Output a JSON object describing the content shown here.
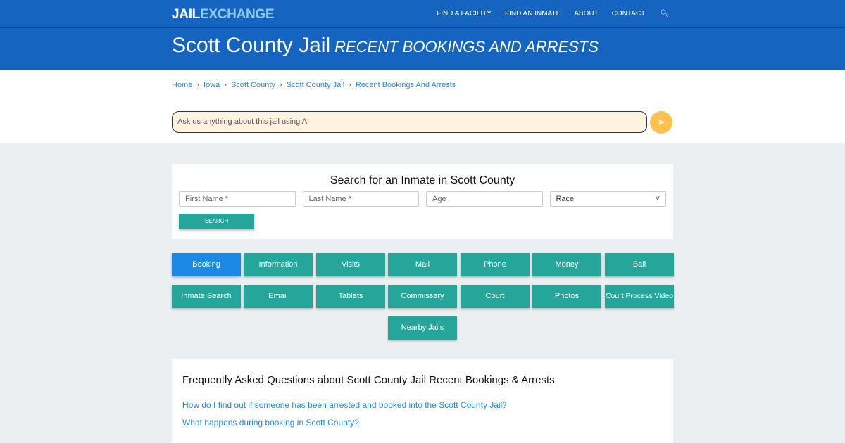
{
  "header": {
    "logo_a": "JAIL",
    "logo_b": "EXCHANGE",
    "menu": [
      "FIND A FACILITY",
      "FIND AN INMATE",
      "ABOUT",
      "CONTACT"
    ]
  },
  "title": {
    "main": "Scott County Jail",
    "sub": "RECENT BOOKINGS AND ARRESTS"
  },
  "breadcrumb": [
    "Home",
    "Iowa",
    "Scott County",
    "Scott County Jail",
    "Recent Bookings And Arrests"
  ],
  "ai": {
    "placeholder": "Ask us anything about this jail using AI"
  },
  "search": {
    "title": "Search for an Inmate in Scott County",
    "first": "First Name *",
    "last": "Last Name *",
    "age": "Age",
    "race": "Race",
    "button": "SEARCH"
  },
  "buttons": [
    "Booking",
    "Information",
    "Visits",
    "Mail",
    "Phone",
    "Money",
    "Bail",
    "Inmate Search",
    "Email",
    "Tablets",
    "Commissary",
    "Court",
    "Photos",
    "Court Process Video",
    "Nearby Jails"
  ],
  "faq": {
    "title": "Frequently Asked Questions about Scott County Jail Recent Bookings & Arrests",
    "questions": [
      "How do I find out if someone has been arrested and booked into the Scott County Jail?",
      "What happens during booking in Scott County?"
    ]
  },
  "colors": {
    "brand": "#1565c0",
    "button": "#26a69a",
    "active": "#1e88e5",
    "send": "#ffc14d"
  }
}
